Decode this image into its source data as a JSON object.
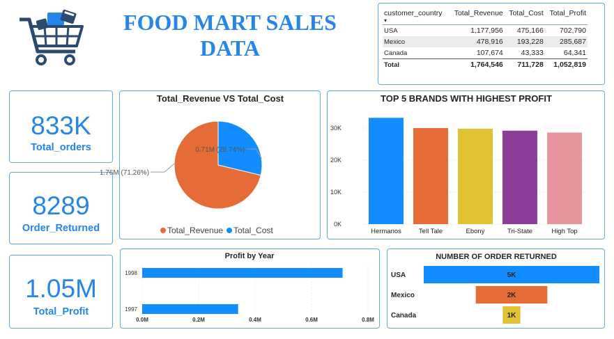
{
  "header": {
    "title": "FOOD MART SALES DATA",
    "logo_icon": "shopping-cart-icon",
    "colors": {
      "title": "#2585e9",
      "logo": "#2b4a6f"
    }
  },
  "summary_table": {
    "columns": [
      "customer_country",
      "Total_Revenue",
      "Total_Cost",
      "Total_Profit"
    ],
    "sort_indicator": "▾",
    "rows": [
      [
        "USA",
        "1,177,956",
        "475,166",
        "702,790"
      ],
      [
        "Mexico",
        "478,916",
        "193,228",
        "285,687"
      ],
      [
        "Canada",
        "107,674",
        "43,333",
        "64,341"
      ]
    ],
    "total": [
      "Total",
      "1,764,546",
      "711,728",
      "1,052,819"
    ]
  },
  "kpis": {
    "orders": {
      "value": "833K",
      "label": "Total_orders"
    },
    "returned": {
      "value": "8289",
      "label": "Order_Returned"
    },
    "profit": {
      "value": "1.05M",
      "label": "Total_Profit"
    }
  },
  "chart_data": [
    {
      "id": "revenue_vs_cost",
      "type": "pie",
      "title": "Total_Revenue VS Total_Cost",
      "labels": [
        "Total_Revenue",
        "Total_Cost"
      ],
      "values": [
        1.76,
        0.71
      ],
      "percent": [
        71.26,
        28.74
      ],
      "data_labels": [
        "1.76M (71.26%)",
        "0.71M (28.74%)"
      ],
      "colors": [
        "#e66c37",
        "#118dff"
      ],
      "legend": "bottom"
    },
    {
      "id": "top_brands",
      "type": "bar",
      "title": "TOP 5 BRANDS WITH HIGHEST PROFIT",
      "categories": [
        "Hermanos",
        "Tell Tale",
        "Ebony",
        "Tri-State",
        "High Top"
      ],
      "values": [
        33200,
        30000,
        29800,
        29200,
        28600
      ],
      "colors": [
        "#118dff",
        "#e66c37",
        "#e1c233",
        "#8b3d99",
        "#e8949d"
      ],
      "yticks": [
        0,
        10000,
        20000,
        30000
      ],
      "ytick_labels": [
        "0K",
        "10K",
        "20K",
        "30K"
      ],
      "ylim": [
        0,
        35000
      ],
      "grid": true
    },
    {
      "id": "profit_by_year",
      "type": "bar",
      "orientation": "horizontal",
      "title": "Profit by Year",
      "categories": [
        "1998",
        "1997"
      ],
      "values": [
        710000,
        340000
      ],
      "color": "#118dff",
      "xticks": [
        0,
        200000,
        400000,
        600000,
        800000
      ],
      "xtick_labels": [
        "0.0M",
        "0.2M",
        "0.4M",
        "0.6M",
        "0.8M"
      ],
      "xlim": [
        0,
        800000
      ],
      "grid": true
    },
    {
      "id": "orders_returned",
      "type": "bar",
      "orientation": "horizontal",
      "title": "NUMBER OF ORDER RETURNED",
      "categories": [
        "USA",
        "Mexico",
        "Canada"
      ],
      "values": [
        5400,
        2200,
        540
      ],
      "data_labels": [
        "5K",
        "2K",
        "1K"
      ],
      "colors": [
        "#118dff",
        "#e66c37",
        "#e1c233"
      ],
      "layout": "funnel"
    }
  ]
}
